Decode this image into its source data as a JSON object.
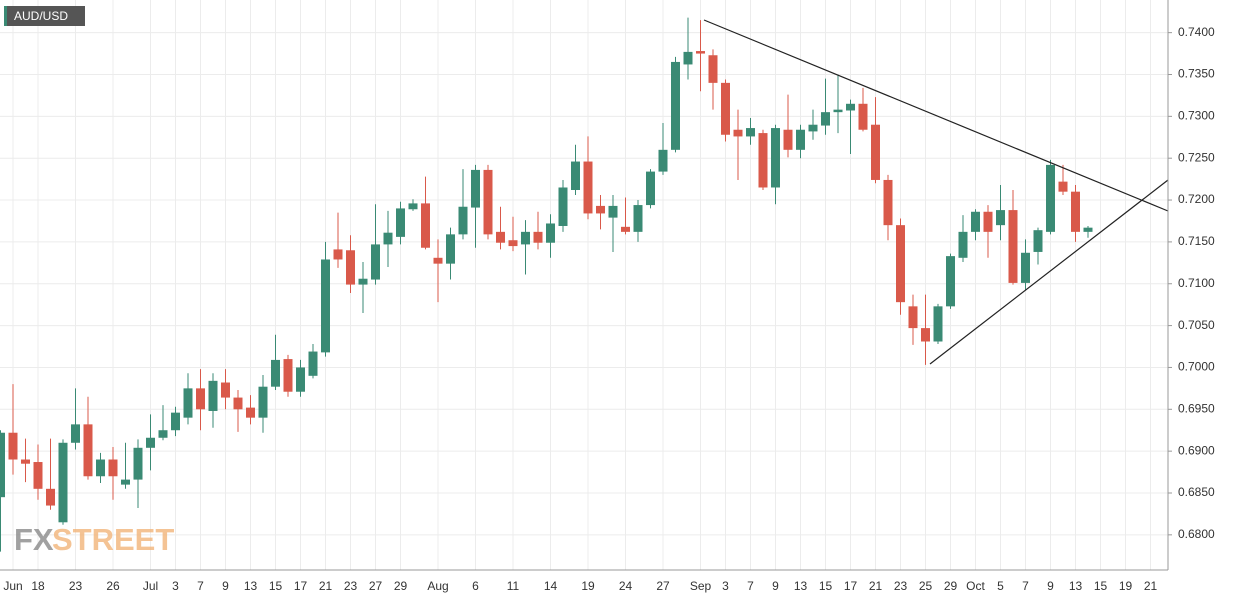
{
  "chart_data": {
    "type": "candlestick",
    "title": "AUD/USD",
    "logo": [
      "FX",
      "STREET"
    ],
    "up_color": "#3a8a74",
    "down_color": "#d9594a",
    "grid": true,
    "categories": [
      null,
      "Jun",
      null,
      "18",
      null,
      null,
      "23",
      null,
      null,
      "26",
      null,
      null,
      "Jul",
      null,
      "3",
      null,
      "7",
      null,
      "9",
      null,
      "13",
      null,
      "15",
      null,
      "17",
      null,
      "21",
      null,
      "23",
      null,
      "27",
      null,
      "29",
      null,
      null,
      "Aug",
      null,
      null,
      "6",
      null,
      null,
      "11",
      null,
      null,
      "14",
      null,
      null,
      "19",
      null,
      null,
      "24",
      null,
      null,
      "27",
      null,
      null,
      "Sep",
      null,
      "3",
      null,
      "7",
      null,
      "9",
      null,
      "13",
      null,
      "15",
      null,
      "17",
      null,
      "21",
      null,
      "23",
      null,
      "25",
      null,
      "29",
      null,
      "Oct",
      null,
      "5",
      null,
      "7",
      null,
      "9",
      null,
      "13",
      null,
      "15",
      null,
      "19",
      null,
      "21"
    ],
    "open": [
      0.6845,
      0.6922,
      0.689,
      0.6887,
      0.6855,
      0.6815,
      0.691,
      0.6932,
      0.687,
      0.689,
      0.686,
      0.6866,
      0.6904,
      0.6916,
      0.6925,
      0.694,
      0.6975,
      0.6948,
      0.6982,
      0.6964,
      0.6952,
      0.694,
      0.6977,
      0.701,
      0.6971,
      0.699,
      0.7018,
      0.7141,
      0.714,
      0.7099,
      0.7105,
      0.7147,
      0.7156,
      0.7189,
      0.7196,
      0.7131,
      0.7124,
      0.7159,
      0.7191,
      0.7236,
      0.7162,
      0.7152,
      0.7147,
      0.7162,
      0.7149,
      0.7169,
      0.7212,
      0.7246,
      0.7193,
      0.7179,
      0.7168,
      0.7162,
      0.7194,
      0.7234,
      0.726,
      0.7362,
      0.7378,
      0.7373,
      0.734,
      0.7284,
      0.7276,
      0.728,
      0.7215,
      0.7284,
      0.726,
      0.7282,
      0.7289,
      0.7305,
      0.7307,
      0.7315,
      0.729,
      0.7224,
      0.717,
      0.7073,
      0.7047,
      0.7031,
      0.7073,
      0.7131,
      0.7162,
      0.7186,
      0.717,
      0.7188,
      0.7101,
      0.7138,
      0.7162,
      0.7222,
      0.721,
      0.7162,
      null,
      null,
      null,
      null,
      null
    ],
    "high": [
      0.6925,
      0.698,
      0.6915,
      0.6908,
      0.6915,
      0.6914,
      0.6975,
      0.6965,
      0.6898,
      0.6905,
      0.691,
      0.6914,
      0.6944,
      0.6955,
      0.6953,
      0.6993,
      0.6998,
      0.6993,
      0.6998,
      0.6973,
      0.6967,
      0.6991,
      0.7039,
      0.7015,
      0.7009,
      0.7028,
      0.715,
      0.7185,
      0.7158,
      0.7126,
      0.7195,
      0.7187,
      0.7198,
      0.7201,
      0.7228,
      0.7153,
      0.7167,
      0.7237,
      0.7242,
      0.7242,
      0.7192,
      0.718,
      0.7176,
      0.7186,
      0.7183,
      0.7224,
      0.7266,
      0.7276,
      0.7206,
      0.7206,
      0.7203,
      0.72,
      0.7237,
      0.7292,
      0.7371,
      0.7418,
      0.7415,
      0.738,
      0.7344,
      0.7308,
      0.7298,
      0.7284,
      0.729,
      0.7326,
      0.729,
      0.7308,
      0.7345,
      0.735,
      0.732,
      0.7334,
      0.7323,
      0.723,
      0.7178,
      0.7087,
      0.7087,
      0.7076,
      0.7136,
      0.7182,
      0.7189,
      0.7194,
      0.7218,
      0.7212,
      0.7153,
      0.7167,
      0.7248,
      0.7242,
      0.7218,
      0.7169,
      null,
      null,
      null,
      null,
      null
    ],
    "low": [
      0.678,
      0.6872,
      0.6863,
      0.6842,
      0.683,
      0.6812,
      0.6902,
      0.6866,
      0.6862,
      0.6842,
      0.6855,
      0.6832,
      0.6877,
      0.6913,
      0.6918,
      0.6932,
      0.6925,
      0.6928,
      0.695,
      0.6923,
      0.6932,
      0.6922,
      0.6973,
      0.6965,
      0.6965,
      0.6987,
      0.7013,
      0.7119,
      0.7089,
      0.7065,
      0.7099,
      0.712,
      0.7147,
      0.7187,
      0.7141,
      0.7078,
      0.7105,
      0.7153,
      0.7143,
      0.7153,
      0.7141,
      0.7139,
      0.7111,
      0.7141,
      0.7131,
      0.7162,
      0.7206,
      0.7177,
      0.7165,
      0.7138,
      0.7159,
      0.715,
      0.719,
      0.723,
      0.7257,
      0.7344,
      0.733,
      0.7308,
      0.727,
      0.7224,
      0.7266,
      0.7212,
      0.7195,
      0.7251,
      0.725,
      0.7272,
      0.7278,
      0.728,
      0.7255,
      0.7282,
      0.722,
      0.7152,
      0.7063,
      0.7027,
      0.7003,
      0.7028,
      0.707,
      0.7126,
      0.7152,
      0.7131,
      0.7152,
      0.7099,
      0.7093,
      0.7123,
      0.7159,
      0.7206,
      0.715,
      0.7155,
      null,
      null,
      null,
      null,
      null
    ],
    "close": [
      0.6922,
      0.689,
      0.6885,
      0.6855,
      0.6835,
      0.691,
      0.6932,
      0.687,
      0.689,
      0.687,
      0.6866,
      0.6904,
      0.6916,
      0.6925,
      0.6946,
      0.6975,
      0.695,
      0.6984,
      0.6964,
      0.695,
      0.694,
      0.6977,
      0.7009,
      0.6971,
      0.7,
      0.7019,
      0.7129,
      0.7129,
      0.7099,
      0.7106,
      0.7147,
      0.7161,
      0.719,
      0.7196,
      0.7143,
      0.7124,
      0.7159,
      0.7192,
      0.7236,
      0.7159,
      0.7149,
      0.7145,
      0.7162,
      0.7149,
      0.7172,
      0.7215,
      0.7246,
      0.7184,
      0.7184,
      0.7193,
      0.7162,
      0.7194,
      0.7234,
      0.726,
      0.7365,
      0.7377,
      0.7375,
      0.734,
      0.7278,
      0.7276,
      0.7286,
      0.7215,
      0.7286,
      0.726,
      0.7284,
      0.729,
      0.7305,
      0.7308,
      0.7315,
      0.7284,
      0.7224,
      0.717,
      0.7078,
      0.7047,
      0.7031,
      0.7073,
      0.7133,
      0.7162,
      0.7186,
      0.7162,
      0.7188,
      0.7101,
      0.7137,
      0.7164,
      0.7242,
      0.721,
      0.7162,
      0.7167,
      null,
      null,
      null,
      null,
      null
    ],
    "ylim": [
      0.6758,
      0.7439
    ],
    "yticks": [
      {
        "value": 0.68,
        "label": "0.6800"
      },
      {
        "value": 0.685,
        "label": "0.6850"
      },
      {
        "value": 0.69,
        "label": "0.6900"
      },
      {
        "value": 0.695,
        "label": "0.6950"
      },
      {
        "value": 0.7,
        "label": "0.7000"
      },
      {
        "value": 0.705,
        "label": "0.7050"
      },
      {
        "value": 0.71,
        "label": "0.7100"
      },
      {
        "value": 0.715,
        "label": "0.7150"
      },
      {
        "value": 0.72,
        "label": "0.7200"
      },
      {
        "value": 0.725,
        "label": "0.7250"
      },
      {
        "value": 0.73,
        "label": "0.7300"
      },
      {
        "value": 0.735,
        "label": "0.7350"
      },
      {
        "value": 0.74,
        "label": "0.7400"
      }
    ]
  }
}
